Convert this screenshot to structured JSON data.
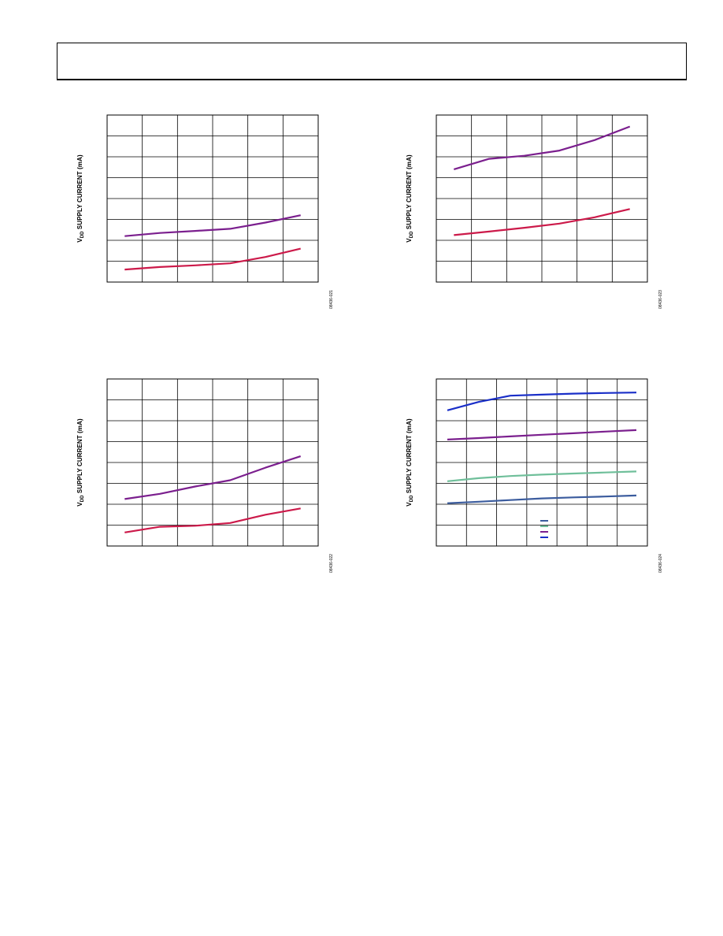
{
  "header": {},
  "chart_data": [
    {
      "type": "line",
      "ylabel_main": "SUPPLY CURRENT (mA)",
      "ylabel_prefix": "V",
      "ylabel_sub": "DD",
      "figure_id": "08436-021",
      "x": [
        0,
        1,
        2,
        3,
        4,
        5
      ],
      "ylim": [
        0,
        8
      ],
      "xlim": [
        0,
        6
      ],
      "grid": true,
      "series": [
        {
          "color": "#7b1f8e",
          "values": [
            2.2,
            2.35,
            2.45,
            2.55,
            2.85,
            3.2
          ]
        },
        {
          "color": "#cc1a4a",
          "values": [
            0.6,
            0.72,
            0.8,
            0.9,
            1.2,
            1.6
          ]
        }
      ]
    },
    {
      "type": "line",
      "ylabel_main": "SUPPLY CURRENT (mA)",
      "ylabel_prefix": "V",
      "ylabel_sub": "DD",
      "figure_id": "08436-023",
      "x": [
        0,
        1,
        2,
        3,
        4,
        5
      ],
      "ylim": [
        0,
        8
      ],
      "xlim": [
        0,
        6
      ],
      "grid": true,
      "series": [
        {
          "color": "#7b1f8e",
          "values": [
            5.4,
            5.9,
            6.05,
            6.3,
            6.8,
            7.45
          ]
        },
        {
          "color": "#cc1a4a",
          "values": [
            2.25,
            2.42,
            2.6,
            2.8,
            3.1,
            3.5
          ]
        }
      ]
    },
    {
      "type": "line",
      "ylabel_main": "SUPPLY CURRENT (mA)",
      "ylabel_prefix": "V",
      "ylabel_sub": "DD",
      "figure_id": "08436-022",
      "x": [
        0,
        1,
        2,
        3,
        4,
        5
      ],
      "ylim": [
        0,
        8
      ],
      "xlim": [
        0,
        6
      ],
      "grid": true,
      "series": [
        {
          "color": "#7b1f8e",
          "values": [
            2.25,
            2.5,
            2.85,
            3.15,
            3.75,
            4.3
          ]
        },
        {
          "color": "#cc1a4a",
          "values": [
            0.65,
            0.92,
            0.97,
            1.1,
            1.5,
            1.8
          ]
        }
      ]
    },
    {
      "type": "line",
      "ylabel_main": "SUPPLY CURRENT (mA)",
      "ylabel_prefix": "V",
      "ylabel_sub": "DD",
      "figure_id": "08436-024",
      "x": [
        0,
        1,
        2,
        3,
        4,
        5,
        6
      ],
      "ylim": [
        0,
        8
      ],
      "xlim": [
        0,
        6.7
      ],
      "grid": true,
      "legend_position": "bottom-center",
      "series": [
        {
          "color": "#3b5c9e",
          "values": [
            2.05,
            2.12,
            2.2,
            2.28,
            2.33,
            2.37,
            2.42
          ]
        },
        {
          "color": "#6fbf9a",
          "values": [
            3.1,
            3.25,
            3.35,
            3.42,
            3.47,
            3.52,
            3.57
          ]
        },
        {
          "color": "#7b1f8e",
          "values": [
            5.1,
            5.17,
            5.25,
            5.33,
            5.4,
            5.48,
            5.55
          ]
        },
        {
          "color": "#1a2fc8",
          "values": [
            6.5,
            6.9,
            7.2,
            7.25,
            7.3,
            7.33,
            7.35
          ]
        }
      ]
    }
  ]
}
